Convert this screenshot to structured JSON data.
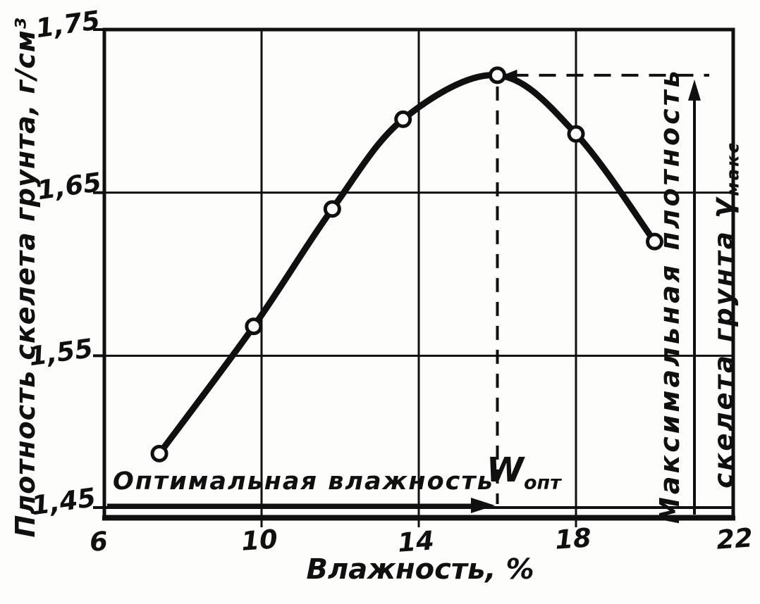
{
  "figure": {
    "background": "#fdfdfc",
    "ink_color": "#101010"
  },
  "chart_data": {
    "type": "line",
    "title": "",
    "xlabel": "Влажность, %",
    "ylabel": "Плотность скелета грунта, г/см³",
    "x": [
      7.4,
      9.8,
      11.8,
      13.6,
      16.0,
      18.0,
      20.0
    ],
    "y": [
      1.49,
      1.568,
      1.64,
      1.695,
      1.722,
      1.686,
      1.62
    ],
    "xlim": [
      6,
      22
    ],
    "ylim": [
      1.45,
      1.75
    ],
    "xticks": [
      "6",
      "10",
      "14",
      "18",
      "22"
    ],
    "yticks": [
      "1,75",
      "1,65",
      "1,55",
      "1,45"
    ],
    "xtick_values": [
      6,
      10,
      14,
      18,
      22
    ],
    "ytick_values": [
      1.75,
      1.65,
      1.55,
      1.45
    ],
    "grid": true,
    "marker": "open-circle",
    "legend": "none",
    "optimum_point": {
      "x": 16.0,
      "y": 1.722
    },
    "annotations": {
      "optimal_moisture": {
        "label": "Оптимальная влажность",
        "symbol": "W",
        "subscript": "опт"
      },
      "max_density": {
        "line1": "Максимальная плотность",
        "line2": "скелета грунта ",
        "symbol": "γ",
        "subscript": "макс"
      }
    }
  }
}
